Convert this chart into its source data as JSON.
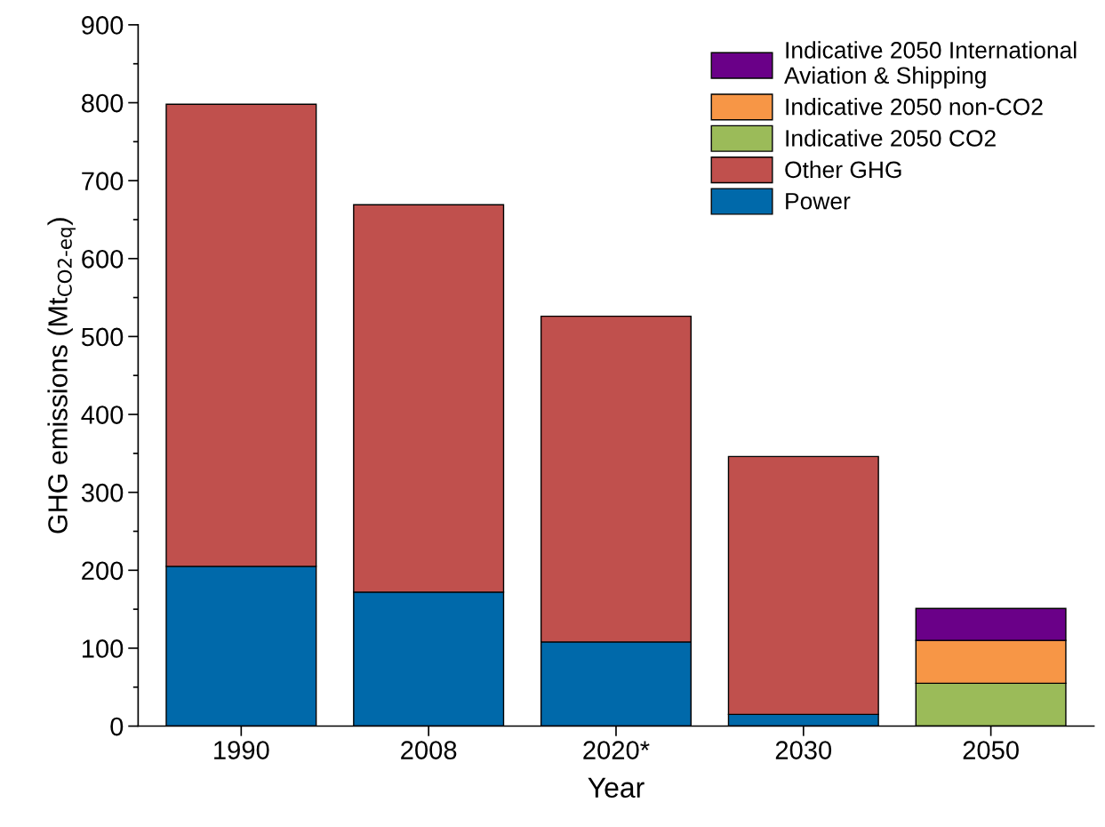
{
  "chart_data": {
    "type": "bar",
    "stacked": true,
    "xlabel": "Year",
    "ylabel": "GHG emissions (Mt$_{CO2-eq}$)",
    "categories": [
      "1990",
      "2008",
      "2020*",
      "2030",
      "2050"
    ],
    "series": [
      {
        "name": "Power",
        "color": "#0069aa",
        "values": [
          205,
          172,
          108,
          15,
          null
        ]
      },
      {
        "name": "Other GHG",
        "color": "#c0504d",
        "values": [
          593,
          497,
          418,
          331,
          null
        ]
      },
      {
        "name": "Indicative 2050 CO2",
        "color": "#9bbb59",
        "values": [
          null,
          null,
          null,
          null,
          55
        ]
      },
      {
        "name": "Indicative 2050 non-CO2",
        "color": "#f79646",
        "values": [
          null,
          null,
          null,
          null,
          55
        ]
      },
      {
        "name": "Indicative 2050 International\nAviation & Shipping",
        "color": "#6a0088",
        "values": [
          null,
          null,
          null,
          null,
          41
        ]
      }
    ],
    "ylim": [
      0,
      900
    ],
    "yticks": [
      0,
      {
        "value": 50,
        "label": null
      },
      100,
      {
        "value": 150,
        "label": null
      },
      200,
      {
        "value": 250,
        "label": null
      },
      300,
      {
        "value": 350,
        "label": null
      },
      400,
      {
        "value": 450,
        "label": null
      },
      500,
      {
        "value": 550,
        "label": null
      },
      600,
      {
        "value": 650,
        "label": null
      },
      700,
      {
        "value": 750,
        "label": null
      },
      800,
      {
        "value": 850,
        "label": null
      },
      900
    ],
    "grid": false,
    "legend": "top right"
  }
}
